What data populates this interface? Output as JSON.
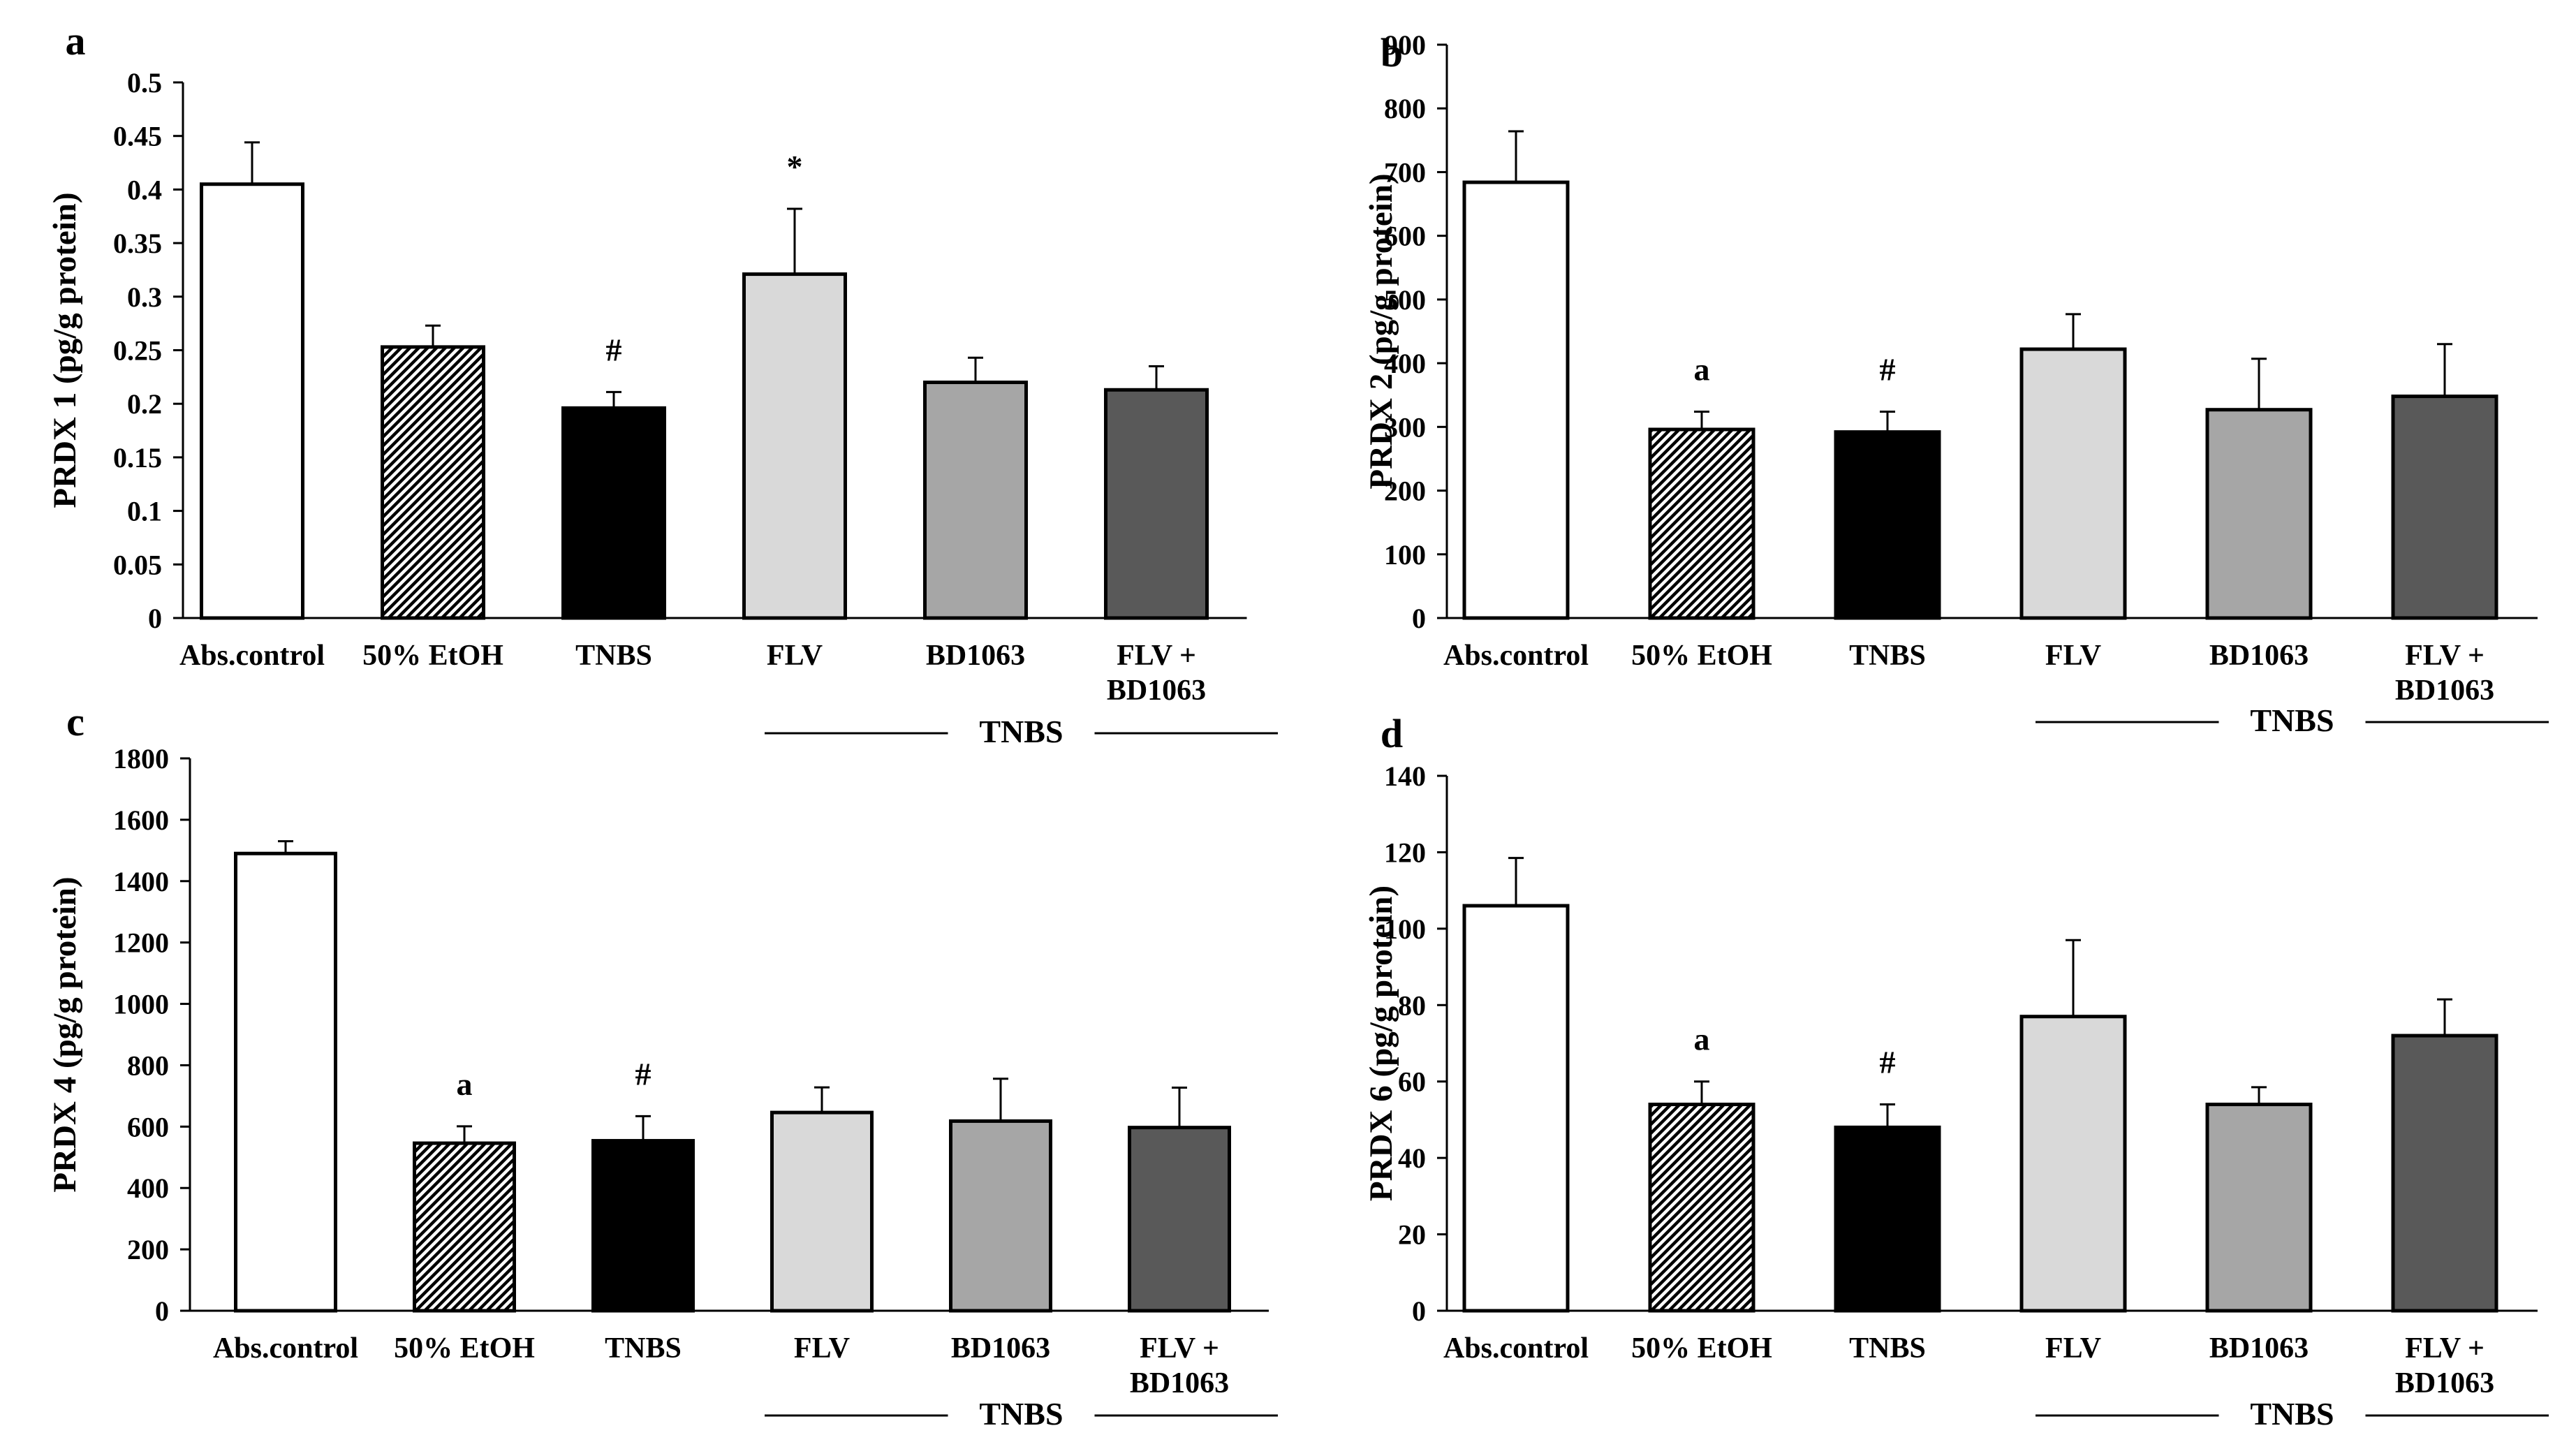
{
  "chart_data": [
    {
      "panel": "a",
      "type": "bar",
      "ylabel": "PRDX 1 (pg/g protein)",
      "ylim": [
        0,
        0.5
      ],
      "ytick_labels": [
        "0",
        "0.05",
        "0.1",
        "0.15",
        "0.2",
        "0.25",
        "0.3",
        "0.35",
        "0.4",
        "0.45",
        "0.5"
      ],
      "categories": [
        "Abs.control",
        "50% EtOH",
        "TNBS",
        "FLV",
        "BD1063",
        "FLV +\nBD1063"
      ],
      "values": [
        0.405,
        0.253,
        0.196,
        0.321,
        0.22,
        0.213
      ],
      "errors": [
        0.039,
        0.02,
        0.015,
        0.061,
        0.023,
        0.022
      ],
      "annotations": [
        "",
        "",
        "#",
        "*",
        "",
        ""
      ],
      "group_label": "TNBS"
    },
    {
      "panel": "b",
      "type": "bar",
      "ylabel": "PRDX 2 (pg/g protein)",
      "ylim": [
        0,
        900
      ],
      "ytick_labels": [
        "0",
        "100",
        "200",
        "300",
        "400",
        "500",
        "600",
        "700",
        "800",
        "900"
      ],
      "categories": [
        "Abs.control",
        "50% EtOH",
        "TNBS",
        "FLV",
        "BD1063",
        "FLV +\nBD1063"
      ],
      "values": [
        684,
        296,
        292,
        422,
        327,
        348
      ],
      "errors": [
        80,
        28,
        32,
        55,
        80,
        82
      ],
      "annotations": [
        "",
        "a",
        "#",
        "",
        "",
        ""
      ],
      "group_label": "TNBS"
    },
    {
      "panel": "c",
      "type": "bar",
      "ylabel": "PRDX 4 (pg/g protein)",
      "ylim": [
        0,
        1800
      ],
      "ytick_labels": [
        "0",
        "200",
        "400",
        "600",
        "800",
        "1000",
        "1200",
        "1400",
        "1600",
        "1800"
      ],
      "categories": [
        "Abs.control",
        "50% EtOH",
        "TNBS",
        "FLV",
        "BD1063",
        "FLV +\nBD1063"
      ],
      "values": [
        1490,
        546,
        554,
        646,
        618,
        597
      ],
      "errors": [
        40,
        55,
        80,
        82,
        138,
        130
      ],
      "annotations": [
        "",
        "a",
        "#",
        "",
        "",
        ""
      ],
      "group_label": "TNBS"
    },
    {
      "panel": "d",
      "type": "bar",
      "ylabel": "PRDX 6 (pg/g protein)",
      "ylim": [
        0,
        140
      ],
      "ytick_labels": [
        "0",
        "20",
        "40",
        "60",
        "80",
        "100",
        "120",
        "140"
      ],
      "categories": [
        "Abs.control",
        "50% EtOH",
        "TNBS",
        "FLV",
        "BD1063",
        "FLV +\nBD1063"
      ],
      "values": [
        106,
        54,
        48,
        77,
        54,
        72
      ],
      "errors": [
        12.5,
        6,
        6,
        20,
        4.5,
        9.5
      ],
      "annotations": [
        "",
        "a",
        "#",
        "",
        "",
        ""
      ],
      "group_label": "TNBS"
    }
  ],
  "colors": {
    "abs_control": "#ffffff",
    "etoh": "hatched",
    "tnbs": "#000000",
    "flv": "#d9d9d9",
    "bd1063": "#a6a6a6",
    "flv_bd1063": "#595959"
  }
}
